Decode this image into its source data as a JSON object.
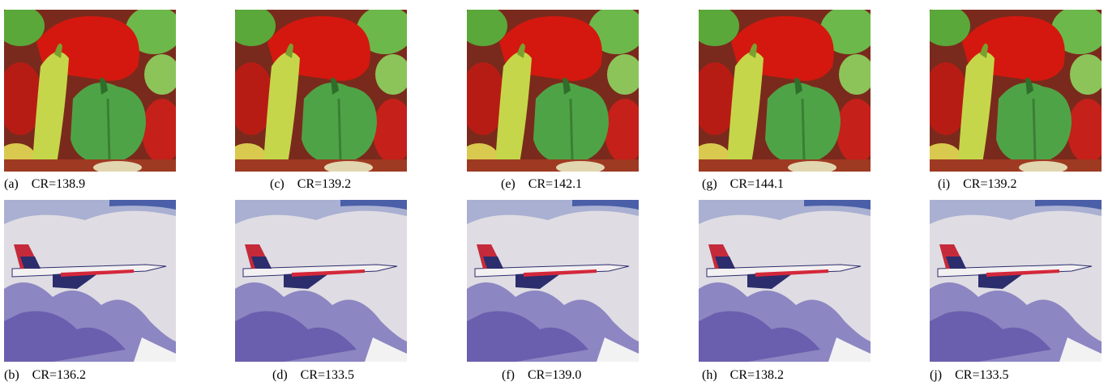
{
  "rows": [
    [
      {
        "label": "(a)",
        "caption": "CR=138.9"
      },
      {
        "label": "(c)",
        "caption": "CR=139.2"
      },
      {
        "label": "(e)",
        "caption": "CR=142.1"
      },
      {
        "label": "(g)",
        "caption": "CR=144.1"
      },
      {
        "label": "(i)",
        "caption": "CR=139.2"
      }
    ],
    [
      {
        "label": "(b)",
        "caption": "CR=136.2"
      },
      {
        "label": "(d)",
        "caption": "CR=133.5"
      },
      {
        "label": "(f)",
        "caption": "CR=139.0"
      },
      {
        "label": "(h)",
        "caption": "CR=138.2"
      },
      {
        "label": "(j)",
        "caption": "CR=133.5"
      }
    ]
  ]
}
